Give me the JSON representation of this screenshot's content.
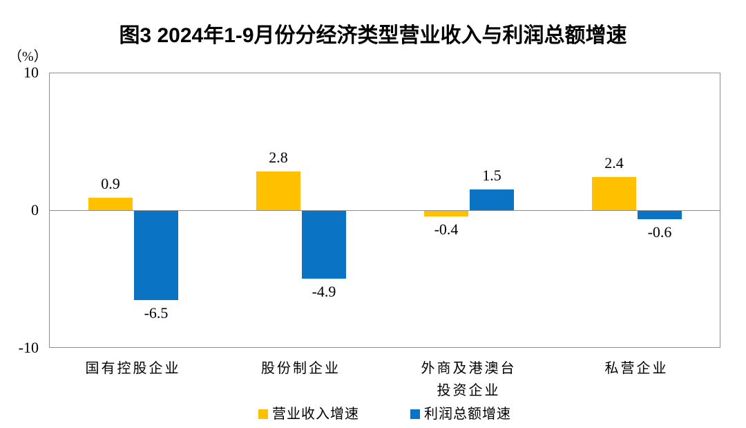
{
  "chart_data": {
    "type": "bar",
    "title": "图3  2024年1-9月份分经济类型营业收入与利润总额增速",
    "unit_label": "（%）",
    "categories": [
      "国有控股企业",
      "股份制企业",
      "外商及港澳台\n投资企业",
      "私营企业"
    ],
    "series": [
      {
        "key": "revenue",
        "name": "营业收入增速",
        "color": "#FFC000",
        "values": [
          0.9,
          2.8,
          -0.4,
          2.4
        ]
      },
      {
        "key": "profit",
        "name": "利润总额增速",
        "color": "#0B73C4",
        "values": [
          -6.5,
          -4.9,
          1.5,
          -0.6
        ]
      }
    ],
    "yticks": [
      10,
      0,
      -10
    ],
    "ylim": [
      -10,
      10
    ],
    "xlabel": "",
    "ylabel": "（%）",
    "grid": false,
    "value_labels": "outside-end",
    "legend_position": "bottom",
    "style": {
      "axis_color": "#8C8C8C",
      "text_color": "#000000",
      "background": "#FFFFFF"
    }
  }
}
